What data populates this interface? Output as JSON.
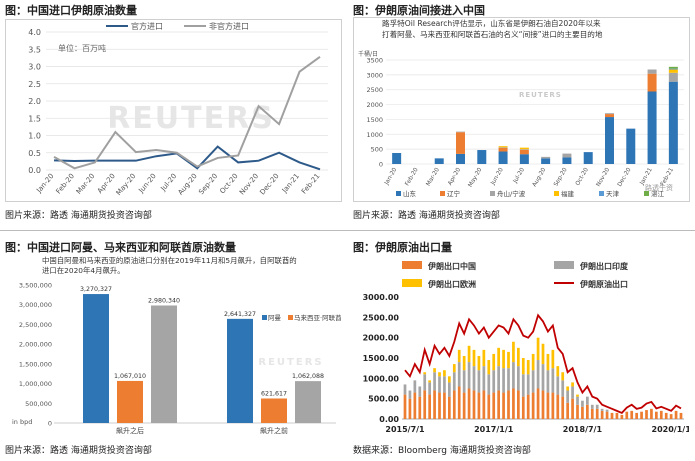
{
  "panels": [
    {
      "title": "图：中国进口伊朗原油数量",
      "source": "图片来源：路透   海通期货投资咨询部"
    },
    {
      "title": "图：伊朗原油间接进入中国",
      "source": "图片来源：路透   海通期货投资咨询部"
    },
    {
      "title": "图：中国进口阿曼、马来西亚和阿联酋原油数量",
      "source": "图片来源：路透   海通期货投资咨询部"
    },
    {
      "title": "图：伊朗原油出口量",
      "source": "数据来源：Bloomberg   海通期货投资咨询部"
    }
  ],
  "chart_data": [
    {
      "type": "line",
      "unit_note": "单位：百万吨",
      "watermark": "REUTERS",
      "categories": [
        "Jan-20",
        "Feb-20",
        "Mar-20",
        "Apr-20",
        "May-20",
        "Jun-20",
        "Jul-20",
        "Aug-20",
        "Sep-20",
        "Oct-20",
        "Nov-20",
        "Dec-20",
        "Jan-21",
        "Feb-21"
      ],
      "ylim": [
        0,
        4.0
      ],
      "yticks": [
        "0.0",
        "0.5",
        "1.0",
        "1.5",
        "2.0",
        "2.5",
        "3.0",
        "3.5",
        "4.0"
      ],
      "series": [
        {
          "name": "官方进口",
          "color": "#2e5a8a",
          "values": [
            0.28,
            0.26,
            0.27,
            0.27,
            0.27,
            0.4,
            0.48,
            0.05,
            0.68,
            0.22,
            0.27,
            0.5,
            0.22,
            0.02
          ]
        },
        {
          "name": "非官方进口",
          "color": "#a0a0a0",
          "values": [
            0.38,
            0.05,
            0.22,
            1.1,
            0.52,
            0.58,
            0.5,
            0.1,
            0.35,
            0.42,
            1.85,
            1.33,
            2.85,
            3.28
          ]
        }
      ]
    },
    {
      "type": "bar",
      "stacked": true,
      "note": "路孚特Oil Research评估显示，山东省是伊朗石油自2020年以来打着阿曼、马来西亚和阿联酋石油的名义“间接”进口的主要目的地",
      "unit": "千桶/日",
      "watermark": "REUTERS",
      "credit": "路透午资",
      "categories": [
        "Jan-20",
        "Feb-20",
        "Mar-20",
        "Apr-20",
        "May-20",
        "Jun-20",
        "Jul-20",
        "Aug-20",
        "Sep-20",
        "Oct-20",
        "Nov-20",
        "Dec-20",
        "Jan-21",
        "Feb-21"
      ],
      "ylim": [
        0,
        3500
      ],
      "yticks": [
        "0",
        "500",
        "1000",
        "1500",
        "2000",
        "2500",
        "3000",
        "3500"
      ],
      "series": [
        {
          "name": "山东",
          "color": "#2e75b6",
          "values": [
            370,
            0,
            190,
            340,
            470,
            420,
            330,
            190,
            220,
            400,
            1580,
            1190,
            2440,
            2770
          ]
        },
        {
          "name": "辽宁",
          "color": "#ed7d31",
          "values": [
            0,
            0,
            0,
            730,
            0,
            120,
            150,
            0,
            0,
            0,
            100,
            0,
            600,
            0
          ]
        },
        {
          "name": "舟山/宁波",
          "color": "#a5a5a5",
          "values": [
            0,
            0,
            0,
            20,
            0,
            20,
            20,
            50,
            130,
            0,
            30,
            0,
            140,
            300
          ]
        },
        {
          "name": "福建",
          "color": "#ffc000",
          "values": [
            0,
            0,
            0,
            0,
            0,
            40,
            50,
            0,
            0,
            0,
            0,
            0,
            0,
            110
          ]
        },
        {
          "name": "天津",
          "color": "#5b9bd5",
          "values": [
            0,
            0,
            0,
            0,
            0,
            0,
            0,
            0,
            0,
            0,
            0,
            0,
            0,
            30
          ]
        },
        {
          "name": "湛江",
          "color": "#70ad47",
          "values": [
            0,
            0,
            0,
            0,
            0,
            0,
            0,
            0,
            0,
            0,
            0,
            0,
            0,
            60
          ]
        }
      ]
    },
    {
      "type": "bar",
      "note": "中国自阿曼和马来西亚的原油进口分别在2019年11月和5月飙升，自阿联酋的进口在2020年4月飙升。",
      "ylabel": "in bpd",
      "watermark": "REUTERS",
      "categories": [
        "飙升之后",
        "飙升之前"
      ],
      "ylim": [
        0,
        3500000
      ],
      "yticks": [
        "0",
        "500,000",
        "1,000,000",
        "1,500,000",
        "2,000,000",
        "2,500,000",
        "3,000,000",
        "3,500,000"
      ],
      "series": [
        {
          "name": "阿曼",
          "color": "#2e75b6",
          "values": [
            3270327,
            2641327
          ],
          "labels": [
            "3,270,327",
            "2,641,327"
          ]
        },
        {
          "name": "马来西亚",
          "color": "#ed7d31",
          "values": [
            1067010,
            621617
          ],
          "labels": [
            "1,067,010",
            "621,617"
          ]
        },
        {
          "name": "阿联酋",
          "color": "#a5a5a5",
          "values": [
            2980340,
            1062088
          ],
          "labels": [
            "2,980,340",
            "1,062,088"
          ]
        }
      ],
      "legend_text": [
        "阿曼",
        "马来西亚",
        "阿联酋"
      ]
    },
    {
      "type": "line",
      "xticks": [
        "2015/7/1",
        "2017/1/1",
        "2018/7/1",
        "2020/1/1"
      ],
      "ylim": [
        0,
        3000
      ],
      "yticks": [
        "0.00",
        "250.00",
        "500.00",
        "750.00",
        "1000.00",
        "1250.00",
        "1500.00",
        "1750.00",
        "2000.00",
        "2250.00",
        "2500.00",
        "2750.00",
        "3000.00"
      ],
      "series": [
        {
          "name": "伊朗出口中国",
          "color": "#ed7d31",
          "kind": "bar"
        },
        {
          "name": "伊朗出口印度",
          "color": "#a5a5a5",
          "kind": "bar"
        },
        {
          "name": "伊朗出口欧洲",
          "color": "#ffc000",
          "kind": "bar"
        },
        {
          "name": "伊朗原油出口",
          "color": "#c00000",
          "kind": "line",
          "values": [
            1200,
            1050,
            1350,
            1150,
            1700,
            1350,
            1800,
            1600,
            1750,
            1550,
            1900,
            2350,
            2100,
            2450,
            2300,
            2100,
            2250,
            2000,
            2150,
            2300,
            2250,
            2100,
            2450,
            2300,
            2050,
            2000,
            2150,
            2550,
            2400,
            2150,
            2300,
            1750,
            1600,
            1150,
            1250,
            900,
            650,
            800,
            550,
            500,
            350,
            300,
            250,
            200,
            150,
            280,
            350,
            250,
            280,
            380,
            420,
            260,
            300,
            250,
            200,
            330,
            260
          ]
        },
        {
          "name": "出口中国",
          "values": [
            600,
            500,
            650,
            550,
            700,
            600,
            700,
            650,
            650,
            550,
            700,
            800,
            650,
            750,
            700,
            650,
            700,
            600,
            650,
            700,
            650,
            700,
            750,
            700,
            550,
            600,
            650,
            750,
            700,
            650,
            650,
            600,
            550,
            400,
            500,
            350,
            300,
            350,
            250,
            250,
            200,
            180,
            150,
            150,
            100,
            180,
            200,
            150,
            180,
            220,
            250,
            180,
            200,
            150,
            120,
            200,
            150
          ]
        },
        {
          "name": "出口印度",
          "values": [
            250,
            200,
            300,
            250,
            400,
            300,
            450,
            400,
            400,
            350,
            450,
            600,
            550,
            650,
            600,
            550,
            600,
            500,
            550,
            600,
            600,
            550,
            650,
            600,
            550,
            500,
            550,
            700,
            650,
            550,
            600,
            450,
            400,
            300,
            300,
            200,
            150,
            200,
            100,
            100,
            50,
            50,
            0,
            0,
            0,
            0,
            0,
            0,
            0,
            0,
            0,
            0,
            0,
            0,
            0,
            0,
            0
          ]
        },
        {
          "name": "出口欧洲",
          "values": [
            0,
            0,
            0,
            0,
            50,
            50,
            100,
            100,
            150,
            150,
            200,
            300,
            350,
            400,
            400,
            350,
            400,
            350,
            400,
            450,
            450,
            400,
            500,
            450,
            400,
            350,
            400,
            550,
            500,
            400,
            450,
            250,
            200,
            100,
            100,
            50,
            0,
            0,
            0,
            0,
            0,
            0,
            0,
            0,
            0,
            0,
            0,
            0,
            0,
            0,
            0,
            0,
            0,
            0,
            0,
            0,
            0
          ]
        }
      ]
    }
  ]
}
